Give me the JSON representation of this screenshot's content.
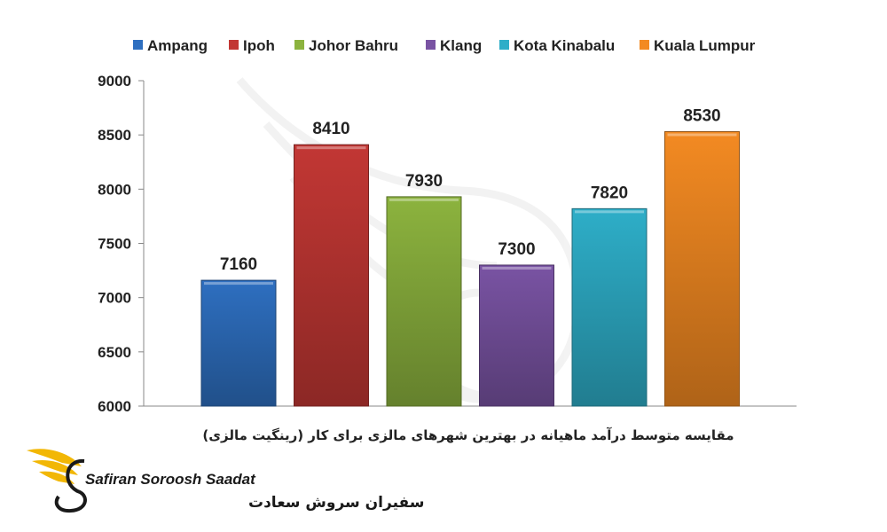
{
  "chart_data": {
    "type": "bar",
    "categories": [
      "Ampang",
      "Ipoh",
      "Johor Bahru",
      "Klang",
      "Kota Kinabalu",
      "Kuala Lumpur"
    ],
    "values": [
      7160,
      8410,
      7930,
      7300,
      7820,
      8530
    ],
    "colors": [
      "#2e6fc0",
      "#c23734",
      "#8cb33e",
      "#7953a3",
      "#2eaec8",
      "#f38a22"
    ],
    "ylim": [
      6000,
      9000
    ],
    "yticks": [
      6000,
      6500,
      7000,
      7500,
      8000,
      8500,
      9000
    ],
    "xlabel": "مقایسه متوسط درآمد ماهیانه در بهترین شهرهای مالزی برای کار (رینگیت مالزی)",
    "legend_position": "top",
    "grid": false
  },
  "logo": {
    "name_en": "Safiran Soroosh Saadat",
    "name_fa": "سفیران سروش سعادت"
  }
}
